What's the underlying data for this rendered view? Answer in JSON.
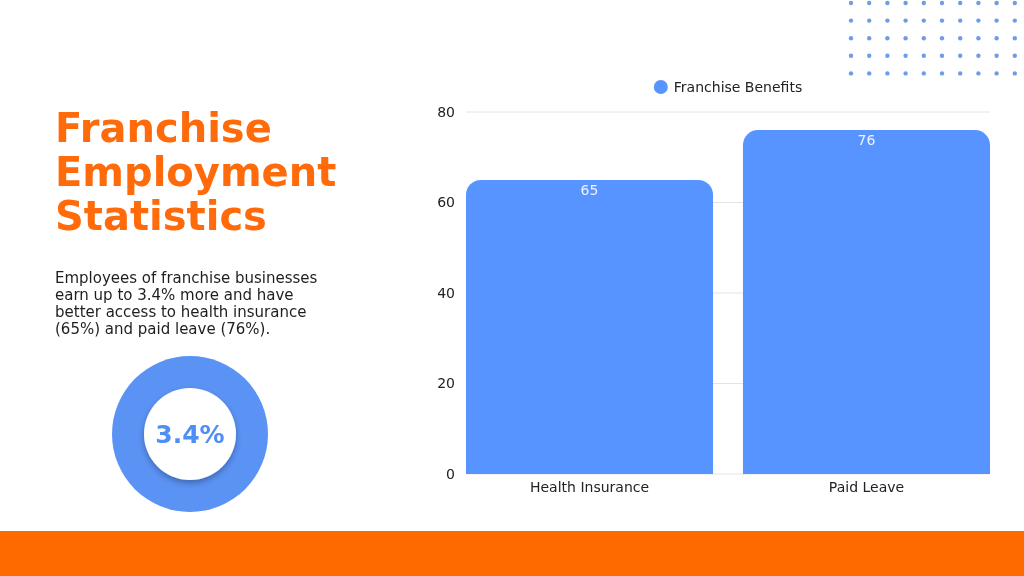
{
  "chart_data": {
    "type": "bar",
    "title": "Franchise Employment Statistics",
    "subtitle": "Employees of franchise businesses earn up to 3.4% more and have better access to health insurance (65%) and paid leave (76%).",
    "annotations": [
      "3.4%"
    ],
    "categories": [
      "Health Insurance",
      "Paid Leave"
    ],
    "series": [
      {
        "name": "Franchise Benefits",
        "color": "#5794ff",
        "values": [
          65,
          76
        ]
      }
    ],
    "ylim": [
      0,
      80
    ],
    "yticks": [
      0,
      20,
      40,
      60,
      80
    ],
    "grid": "y",
    "legend": "top",
    "data_labels": true
  }
}
